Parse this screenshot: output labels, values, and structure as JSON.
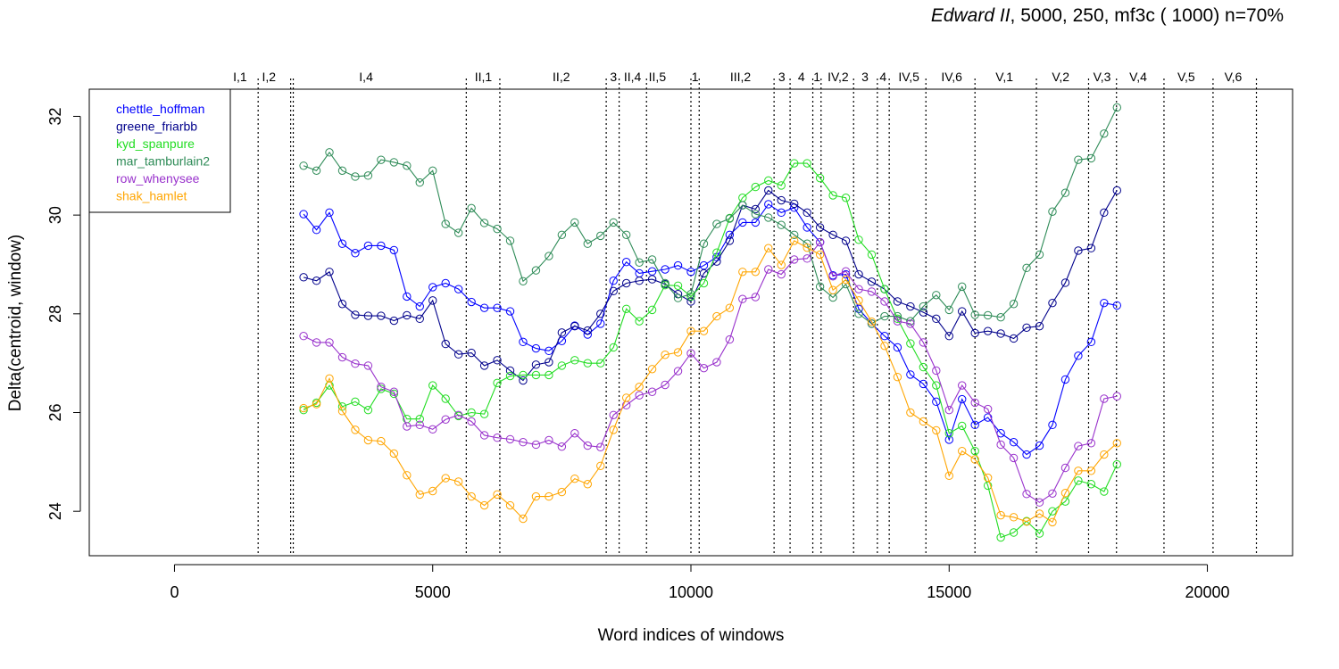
{
  "chart_data": {
    "type": "line",
    "title_italic": "Edward II",
    "title_rest": ", 5000, 250, mf3c ( 1000)   n=70%",
    "xlabel": "Word indices of windows",
    "ylabel": "Delta(centroid, window)",
    "xlim": [
      -1650,
      21650
    ],
    "ylim": [
      23.1,
      32.55
    ],
    "xticks": [
      0,
      5000,
      10000,
      15000,
      20000
    ],
    "yticks": [
      24,
      26,
      28,
      30,
      32
    ],
    "grid": false,
    "legend_position": "top-left",
    "scene_boundaries": [
      1620,
      2250,
      2300,
      5650,
      6300,
      8360,
      8610,
      9140,
      10000,
      10160,
      11610,
      11920,
      12360,
      12520,
      13150,
      13610,
      13840,
      14550,
      15500,
      16690,
      17700,
      18240,
      19160,
      20110,
      20950
    ],
    "scene_labels": [
      {
        "label": "I,1",
        "x": 1270
      },
      {
        "label": "I,2",
        "x": 1830
      },
      {
        "label": "I,4",
        "x": 3710
      },
      {
        "label": "II,1",
        "x": 5980
      },
      {
        "label": "II,2",
        "x": 7490
      },
      {
        "label": "3",
        "x": 8500
      },
      {
        "label": "II,4",
        "x": 8870
      },
      {
        "label": "II,5",
        "x": 9350
      },
      {
        "label": "1",
        "x": 10080
      },
      {
        "label": "III,2",
        "x": 10960
      },
      {
        "label": "3",
        "x": 11760
      },
      {
        "label": "4",
        "x": 12140
      },
      {
        "label": "1",
        "x": 12440
      },
      {
        "label": "IV,2",
        "x": 12850
      },
      {
        "label": "3",
        "x": 13370
      },
      {
        "label": "4",
        "x": 13720
      },
      {
        "label": "IV,5",
        "x": 14220
      },
      {
        "label": "IV,6",
        "x": 15050
      },
      {
        "label": "V,1",
        "x": 16070
      },
      {
        "label": "V,2",
        "x": 17160
      },
      {
        "label": "V,3",
        "x": 17960
      },
      {
        "label": "V,4",
        "x": 18660
      },
      {
        "label": "V,5",
        "x": 19590
      },
      {
        "label": "V,6",
        "x": 20500
      }
    ],
    "x": [
      2500,
      2750,
      3000,
      3250,
      3500,
      3750,
      4000,
      4250,
      4500,
      4750,
      5000,
      5250,
      5500,
      5750,
      6000,
      6250,
      6500,
      6750,
      7000,
      7250,
      7500,
      7750,
      8000,
      8250,
      8500,
      8750,
      9000,
      9250,
      9500,
      9750,
      10000,
      10250,
      10500,
      10750,
      11000,
      11250,
      11500,
      11750,
      12000,
      12250,
      12500,
      12750,
      13000,
      13250,
      13500,
      13750,
      14000,
      14250,
      14500,
      14750,
      15000,
      15250,
      15500,
      15750,
      16000,
      16250,
      16500,
      16750,
      17000,
      17250,
      17500,
      17750,
      18000,
      18250
    ],
    "series": [
      {
        "name": "chettle_hoffman",
        "color": "#0000ff",
        "values": [
          30.02,
          29.7,
          30.05,
          29.42,
          29.23,
          29.38,
          29.38,
          29.29,
          28.35,
          28.15,
          28.54,
          28.62,
          28.5,
          28.24,
          28.12,
          28.12,
          28.05,
          27.43,
          27.3,
          27.25,
          27.45,
          27.76,
          27.58,
          27.8,
          28.67,
          29.05,
          28.82,
          28.86,
          28.9,
          28.98,
          28.85,
          28.98,
          29.15,
          29.6,
          29.85,
          29.85,
          30.22,
          30.05,
          30.15,
          29.75,
          29.45,
          28.78,
          28.8,
          28.1,
          27.8,
          27.55,
          27.32,
          26.77,
          26.58,
          26.22,
          25.45,
          26.27,
          25.75,
          25.9,
          25.58,
          25.4,
          25.15,
          25.33,
          25.75,
          26.67,
          27.15,
          27.43,
          28.22,
          28.17
        ]
      },
      {
        "name": "greene_friarbb",
        "color": "#00008b",
        "values": [
          28.74,
          28.67,
          28.85,
          28.2,
          27.98,
          27.96,
          27.96,
          27.86,
          27.97,
          27.9,
          28.27,
          27.39,
          27.18,
          27.21,
          26.95,
          27.06,
          26.85,
          26.65,
          26.97,
          27.02,
          27.62,
          27.75,
          27.66,
          28.0,
          28.46,
          28.62,
          28.67,
          28.7,
          28.6,
          28.4,
          28.25,
          28.82,
          29.06,
          29.48,
          30.2,
          30.12,
          30.5,
          30.3,
          30.23,
          30.05,
          29.75,
          29.6,
          29.48,
          28.8,
          28.65,
          28.5,
          28.25,
          28.15,
          28.03,
          27.9,
          27.55,
          28.05,
          27.61,
          27.65,
          27.6,
          27.5,
          27.72,
          27.75,
          28.22,
          28.63,
          29.28,
          29.33,
          30.05,
          30.5
        ]
      },
      {
        "name": "kyd_spanpure",
        "color": "#22dd22",
        "values": [
          26.05,
          26.2,
          26.55,
          26.12,
          26.22,
          26.05,
          26.48,
          26.38,
          25.87,
          25.87,
          26.55,
          26.28,
          25.93,
          26.0,
          25.97,
          26.6,
          26.74,
          26.76,
          26.76,
          26.76,
          26.95,
          27.06,
          27.0,
          27.0,
          27.32,
          28.1,
          27.85,
          28.08,
          28.58,
          28.57,
          28.35,
          28.62,
          29.24,
          29.94,
          30.35,
          30.57,
          30.7,
          30.6,
          31.05,
          31.05,
          30.75,
          30.4,
          30.35,
          29.5,
          29.2,
          28.5,
          27.9,
          27.4,
          26.92,
          26.55,
          25.58,
          25.73,
          25.22,
          24.52,
          23.47,
          23.57,
          23.8,
          23.55,
          24.0,
          24.2,
          24.62,
          24.55,
          24.4,
          24.95
        ]
      },
      {
        "name": "mar_tamburlain2",
        "color": "#2e8b57",
        "values": [
          31.0,
          30.9,
          31.27,
          30.9,
          30.78,
          30.8,
          31.12,
          31.07,
          31.0,
          30.66,
          30.9,
          29.82,
          29.64,
          30.14,
          29.84,
          29.72,
          29.48,
          28.66,
          28.88,
          29.17,
          29.6,
          29.85,
          29.42,
          29.58,
          29.85,
          29.6,
          29.04,
          29.1,
          28.62,
          28.32,
          28.4,
          29.42,
          29.82,
          29.93,
          30.2,
          30.02,
          29.95,
          29.8,
          29.6,
          29.42,
          28.55,
          28.33,
          28.6,
          28.0,
          27.8,
          27.95,
          27.95,
          27.85,
          28.15,
          28.38,
          28.08,
          28.55,
          27.98,
          27.97,
          27.93,
          28.2,
          28.93,
          29.2,
          30.07,
          30.45,
          31.12,
          31.15,
          31.65,
          32.18
        ]
      },
      {
        "name": "row_whenysee",
        "color": "#9932cc",
        "values": [
          27.55,
          27.42,
          27.42,
          27.12,
          26.99,
          26.95,
          26.52,
          26.42,
          25.72,
          25.75,
          25.66,
          25.86,
          25.95,
          25.82,
          25.54,
          25.49,
          25.46,
          25.4,
          25.35,
          25.44,
          25.31,
          25.58,
          25.33,
          25.3,
          25.95,
          26.15,
          26.35,
          26.42,
          26.56,
          26.84,
          27.2,
          26.9,
          27.02,
          27.48,
          28.3,
          28.34,
          28.9,
          28.8,
          29.1,
          29.12,
          29.45,
          28.76,
          28.86,
          28.5,
          28.45,
          28.25,
          27.85,
          27.8,
          27.42,
          26.85,
          26.05,
          26.55,
          26.2,
          26.07,
          25.35,
          25.08,
          24.35,
          24.18,
          24.36,
          24.88,
          25.32,
          25.38,
          26.28,
          26.33
        ]
      },
      {
        "name": "shak_hamlet",
        "color": "#ffa500",
        "values": [
          26.09,
          26.17,
          26.69,
          26.03,
          25.65,
          25.44,
          25.42,
          25.17,
          24.73,
          24.34,
          24.41,
          24.67,
          24.6,
          24.3,
          24.12,
          24.34,
          24.12,
          23.85,
          24.3,
          24.3,
          24.39,
          24.66,
          24.55,
          24.92,
          25.65,
          26.3,
          26.52,
          26.88,
          27.17,
          27.22,
          27.65,
          27.65,
          27.95,
          28.12,
          28.85,
          28.85,
          29.33,
          28.99,
          29.48,
          29.34,
          29.2,
          28.48,
          28.69,
          28.27,
          27.84,
          27.35,
          26.72,
          26.0,
          25.82,
          25.64,
          24.72,
          25.22,
          25.05,
          24.68,
          23.92,
          23.88,
          23.79,
          23.95,
          23.78,
          24.37,
          24.82,
          24.82,
          25.15,
          25.38
        ]
      }
    ]
  }
}
